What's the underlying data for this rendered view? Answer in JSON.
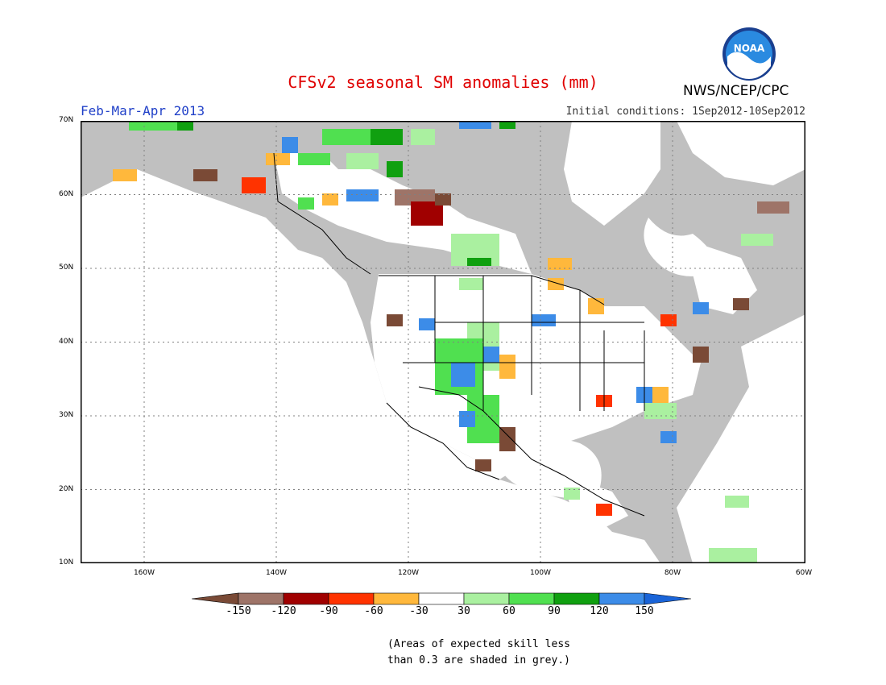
{
  "title": "CFSv2 seasonal SM anomalies (mm)",
  "agency": "NWS/NCEP/CPC",
  "logo_text": "NOAA",
  "period": "Feb-Mar-Apr 2013",
  "initial_conditions": "Initial conditions: 1Sep2012-10Sep2012",
  "lat_labels": [
    "70N",
    "60N",
    "50N",
    "40N",
    "30N",
    "20N",
    "10N"
  ],
  "lon_labels": [
    "160W",
    "140W",
    "120W",
    "100W",
    "80W",
    "60W"
  ],
  "colorbar": {
    "labels": [
      "-150",
      "-120",
      "-90",
      "-60",
      "-30",
      "30",
      "60",
      "90",
      "120",
      "150"
    ],
    "colors": [
      "#7a4a36",
      "#9e7468",
      "#a00000",
      "#ff3300",
      "#ffb83c",
      "#ffffff",
      "#aaf0a0",
      "#50e050",
      "#10a010",
      "#3c8ce8",
      "#1a64d8"
    ]
  },
  "note_line1": "(Areas of expected skill less",
  "note_line2": "than 0.3 are shaded in grey.)",
  "colors": {
    "ocean": "#ffffff",
    "low_skill_grey": "#c0c0c0",
    "title": "#e00000",
    "period": "#2040c8"
  }
}
